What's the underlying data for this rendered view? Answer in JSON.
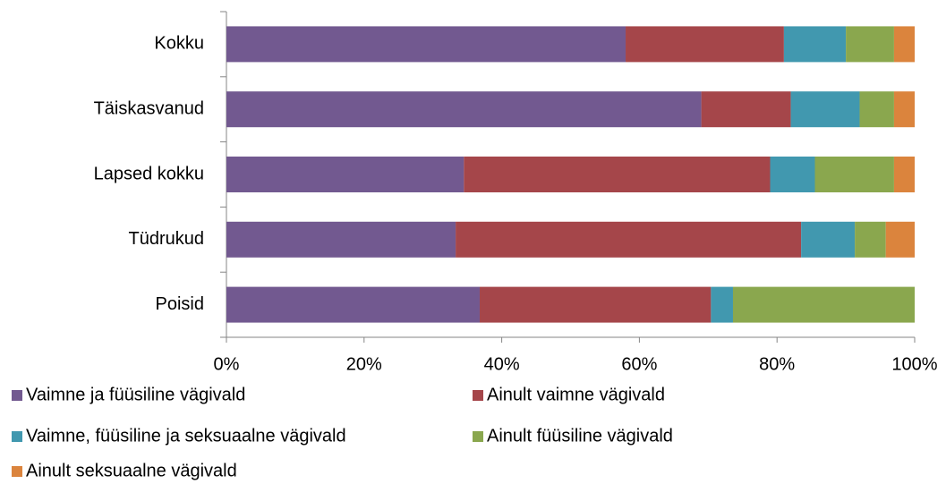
{
  "chart_data": {
    "type": "stacked-barh",
    "categories": [
      "Kokku",
      "Täiskasvanud",
      "Lapsed kokku",
      "Tüdrukud",
      "Poisid"
    ],
    "series": [
      {
        "name": "Vaimne ja füüsiline vägivald",
        "color": "#725990",
        "values": [
          58,
          69,
          34.5,
          33.3,
          36.8
        ]
      },
      {
        "name": "Ainult vaimne vägivald",
        "color": "#a5464a",
        "values": [
          23,
          13,
          44.5,
          50.2,
          33.6
        ]
      },
      {
        "name": "Vaimne, füüsiline ja seksuaalne vägivald",
        "color": "#4198af",
        "values": [
          9,
          10,
          6.5,
          7.8,
          3.2
        ]
      },
      {
        "name": "Ainult füüsiline vägivald",
        "color": "#8aa74e",
        "values": [
          7,
          5,
          11.5,
          4.5,
          26.4
        ]
      },
      {
        "name": "Ainult seksuaalne vägivald",
        "color": "#db843d",
        "values": [
          3,
          3,
          3,
          4.2,
          0
        ]
      }
    ],
    "xlim": [
      0,
      100
    ],
    "xticks": [
      {
        "value": 0,
        "label": "0%"
      },
      {
        "value": 20,
        "label": "20%"
      },
      {
        "value": 40,
        "label": "40%"
      },
      {
        "value": 60,
        "label": "60%"
      },
      {
        "value": 80,
        "label": "80%"
      },
      {
        "value": 100,
        "label": "100%"
      }
    ],
    "legend": "bottom"
  }
}
